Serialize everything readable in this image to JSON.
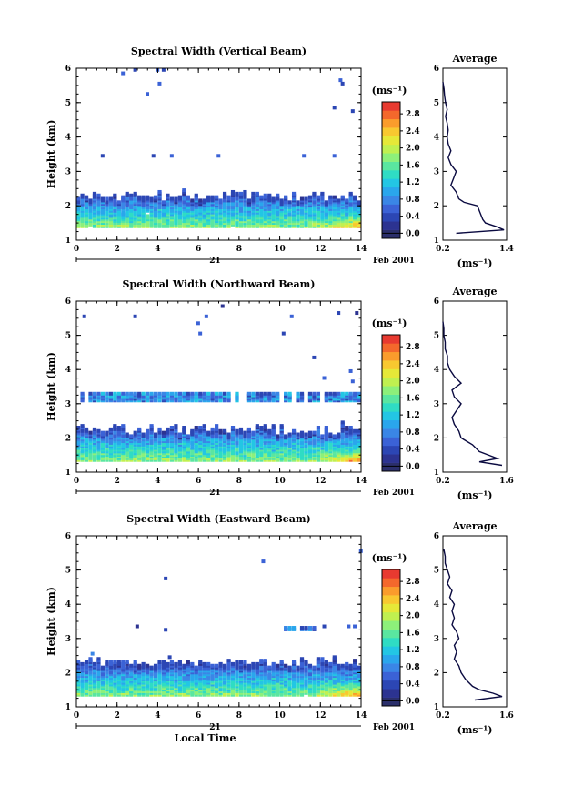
{
  "colorbar": {
    "unit": "(ms⁻¹)",
    "ticks": [
      "0.0",
      "0.4",
      "0.8",
      "1.2",
      "1.6",
      "2.0",
      "2.4",
      "2.8"
    ],
    "colors": [
      "#2b2f6b",
      "#2c3391",
      "#2c46b4",
      "#3b62d6",
      "#3a86e6",
      "#2aa6ec",
      "#23c6e4",
      "#2fdcc4",
      "#5ae6a0",
      "#8df07a",
      "#c0f050",
      "#e6e838",
      "#f8c830",
      "#fa9c2c",
      "#f4682c",
      "#e83a30"
    ]
  },
  "x_axis": {
    "ticks": [
      "0",
      "2",
      "4",
      "6",
      "8",
      "10",
      "12",
      "14"
    ],
    "day": "21",
    "month_year": "Feb 2001",
    "label": "Local Time"
  },
  "chart_data": [
    {
      "type": "heatmap",
      "title": "Spectral Width (Vertical Beam)",
      "xlabel": "",
      "ylabel": "Height (km)",
      "xlim": [
        0,
        14
      ],
      "ylim": [
        1,
        6
      ],
      "yticks": [
        "1",
        "2",
        "3",
        "4",
        "5",
        "6"
      ],
      "zlim": [
        0,
        3.0
      ],
      "band": {
        "bottom": 1.35,
        "top": 2.35,
        "top_raggedness": 0.18
      },
      "layers": [],
      "sparse_echoes": [
        [
          2.2,
          5.8
        ],
        [
          2.8,
          5.9
        ],
        [
          3.9,
          5.9
        ],
        [
          4.2,
          5.9
        ],
        [
          4.0,
          5.5
        ],
        [
          3.4,
          5.2
        ],
        [
          12.9,
          5.6
        ],
        [
          13.0,
          5.5
        ],
        [
          12.6,
          4.8
        ],
        [
          13.5,
          4.7
        ],
        [
          1.2,
          3.4
        ],
        [
          3.7,
          3.4
        ],
        [
          4.6,
          3.4
        ],
        [
          6.9,
          3.4
        ],
        [
          11.1,
          3.4
        ],
        [
          12.6,
          3.4
        ]
      ],
      "profile": {
        "title": "Average",
        "xlim": [
          0.2,
          1.4
        ],
        "xticks": [
          "0.2",
          "1.4"
        ],
        "xlabel": "(ms⁻¹)",
        "heights": [
          1.2,
          1.3,
          1.4,
          1.5,
          1.6,
          1.8,
          2.0,
          2.1,
          2.2,
          2.4,
          2.6,
          2.8,
          3.0,
          3.2,
          3.4,
          3.6,
          3.8,
          4.0,
          4.2,
          4.4,
          4.6,
          4.8,
          5.0,
          5.2,
          5.4,
          5.6
        ],
        "values": [
          0.45,
          1.35,
          1.2,
          1.0,
          0.95,
          0.9,
          0.85,
          0.6,
          0.5,
          0.45,
          0.35,
          0.4,
          0.45,
          0.35,
          0.3,
          0.35,
          0.3,
          0.28,
          0.3,
          0.28,
          0.25,
          0.28,
          0.25,
          0.23,
          0.22,
          0.2
        ]
      }
    },
    {
      "type": "heatmap",
      "title": "Spectral Width (Northward Beam)",
      "xlabel": "",
      "ylabel": "Height (km)",
      "xlim": [
        0,
        14
      ],
      "ylim": [
        1,
        6
      ],
      "yticks": [
        "1",
        "2",
        "3",
        "4",
        "5",
        "6"
      ],
      "zlim": [
        0,
        3.0
      ],
      "band": {
        "bottom": 1.3,
        "top": 2.35,
        "top_raggedness": 0.2
      },
      "layers": [
        {
          "y": 3.15,
          "thickness": 0.22
        }
      ],
      "sparse_echoes": [
        [
          0.3,
          5.5
        ],
        [
          2.8,
          5.5
        ],
        [
          5.9,
          5.3
        ],
        [
          6.0,
          5.0
        ],
        [
          6.3,
          5.5
        ],
        [
          7.1,
          5.8
        ],
        [
          10.5,
          5.5
        ],
        [
          12.8,
          5.6
        ],
        [
          13.7,
          5.6
        ],
        [
          10.1,
          5.0
        ],
        [
          11.6,
          4.3
        ],
        [
          12.1,
          3.7
        ],
        [
          13.4,
          3.9
        ],
        [
          13.5,
          3.6
        ]
      ],
      "profile": {
        "title": "Average",
        "xlim": [
          0.2,
          1.6
        ],
        "xticks": [
          "0.2",
          "1.6"
        ],
        "xlabel": "(ms⁻¹)",
        "heights": [
          1.2,
          1.3,
          1.4,
          1.6,
          1.8,
          2.0,
          2.2,
          2.4,
          2.6,
          2.8,
          3.0,
          3.2,
          3.4,
          3.6,
          3.8,
          4.0,
          4.2,
          4.4,
          4.6,
          4.8,
          5.0,
          5.2,
          5.4
        ],
        "values": [
          1.5,
          1.0,
          1.4,
          1.0,
          0.85,
          0.6,
          0.55,
          0.45,
          0.4,
          0.5,
          0.6,
          0.45,
          0.4,
          0.6,
          0.45,
          0.35,
          0.3,
          0.3,
          0.25,
          0.25,
          0.22,
          0.22,
          0.2
        ]
      }
    },
    {
      "type": "heatmap",
      "title": "Spectral Width (Eastward Beam)",
      "xlabel": "Local Time",
      "ylabel": "Height (km)",
      "xlim": [
        0,
        14
      ],
      "ylim": [
        1,
        6
      ],
      "yticks": [
        "1",
        "2",
        "3",
        "4",
        "5",
        "6"
      ],
      "zlim": [
        0,
        3.0
      ],
      "band": {
        "bottom": 1.3,
        "top": 2.3,
        "top_raggedness": 0.12
      },
      "layers": [
        {
          "y": 3.25,
          "thickness": 0.08,
          "x_from": 10.2,
          "x_to": 11.7
        }
      ],
      "sparse_echoes": [
        [
          4.3,
          4.7
        ],
        [
          9.1,
          5.2
        ],
        [
          13.9,
          5.5
        ],
        [
          2.9,
          3.3
        ],
        [
          4.3,
          3.2
        ],
        [
          12.1,
          3.3
        ],
        [
          13.3,
          3.3
        ],
        [
          13.6,
          3.3
        ],
        [
          0.7,
          2.5
        ],
        [
          4.5,
          2.4
        ]
      ],
      "profile": {
        "title": "Average",
        "xlim": [
          0.2,
          1.6
        ],
        "xticks": [
          "0.2",
          "1.6"
        ],
        "xlabel": "(ms⁻¹)",
        "heights": [
          1.2,
          1.3,
          1.4,
          1.5,
          1.6,
          1.8,
          2.0,
          2.2,
          2.4,
          2.6,
          2.8,
          3.0,
          3.2,
          3.4,
          3.6,
          3.8,
          4.0,
          4.2,
          4.4,
          4.6,
          4.8,
          5.0,
          5.2,
          5.4,
          5.6
        ],
        "values": [
          0.9,
          1.5,
          1.3,
          1.0,
          0.85,
          0.7,
          0.6,
          0.55,
          0.45,
          0.5,
          0.45,
          0.55,
          0.5,
          0.4,
          0.45,
          0.4,
          0.45,
          0.35,
          0.4,
          0.3,
          0.35,
          0.3,
          0.25,
          0.25,
          0.22
        ]
      }
    }
  ]
}
